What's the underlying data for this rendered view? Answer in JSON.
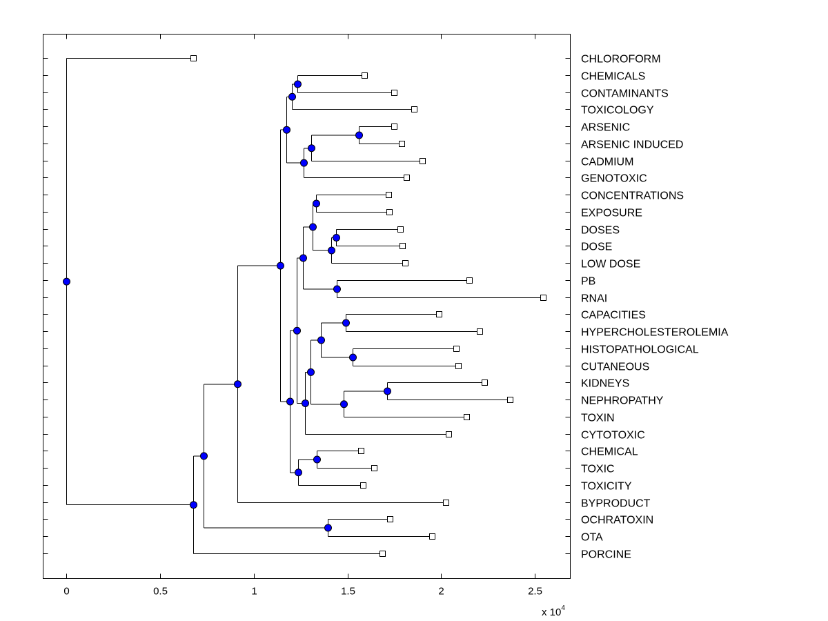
{
  "chart_data": {
    "type": "dendrogram",
    "title": "",
    "xlabel": "",
    "ylabel": "",
    "x_scale_label": "x 10",
    "x_scale_exponent": "4",
    "xlim": [
      -0.125,
      2.69
    ],
    "xticks": [
      0,
      0.5,
      1,
      1.5,
      2,
      2.5
    ],
    "xtick_labels": [
      "0",
      "0.5",
      "1",
      "1.5",
      "2",
      "2.5"
    ],
    "grid": false,
    "colors": {
      "node_fill": "#0000ff",
      "leaf_fill": "#ffffff",
      "line": "#000000"
    },
    "leaves": [
      {
        "id": "CHLOROFORM",
        "label": "CHLOROFORM",
        "x": 0.676
      },
      {
        "id": "CHEMICALS",
        "label": "CHEMICALS",
        "x": 1.592
      },
      {
        "id": "CONTAMINANTS",
        "label": "CONTAMINANTS",
        "x": 1.749
      },
      {
        "id": "TOXICOLOGY",
        "label": "TOXICOLOGY",
        "x": 1.855
      },
      {
        "id": "ARSENIC",
        "label": "ARSENIC",
        "x": 1.749
      },
      {
        "id": "ARSENIC_INDUCED",
        "label": "ARSENIC INDUCED",
        "x": 1.789
      },
      {
        "id": "CADMIUM",
        "label": "CADMIUM",
        "x": 1.899
      },
      {
        "id": "GENOTOXIC",
        "label": "GENOTOXIC",
        "x": 1.815
      },
      {
        "id": "CONCENTRATIONS",
        "label": "CONCENTRATIONS",
        "x": 1.72
      },
      {
        "id": "EXPOSURE",
        "label": "EXPOSURE",
        "x": 1.723
      },
      {
        "id": "DOSES",
        "label": "DOSES",
        "x": 1.782
      },
      {
        "id": "DOSE",
        "label": "DOSE",
        "x": 1.793
      },
      {
        "id": "LOW_DOSE",
        "label": "LOW DOSE",
        "x": 1.808
      },
      {
        "id": "PB",
        "label": "PB",
        "x": 2.152
      },
      {
        "id": "RNAI",
        "label": "RNAI",
        "x": 2.544
      },
      {
        "id": "CAPACITIES",
        "label": "CAPACITIES",
        "x": 1.987
      },
      {
        "id": "HYPERCHOLESTEROLEMIA",
        "label": "HYPERCHOLESTEROLEMIA",
        "x": 2.207
      },
      {
        "id": "HISTOPATHOLOGICAL",
        "label": "HISTOPATHOLOGICAL",
        "x": 2.082
      },
      {
        "id": "CUTANEOUS",
        "label": "CUTANEOUS",
        "x": 2.09
      },
      {
        "id": "KIDNEYS",
        "label": "KIDNEYS",
        "x": 2.233
      },
      {
        "id": "NEPHROPATHY",
        "label": "NEPHROPATHY",
        "x": 2.368
      },
      {
        "id": "TOXIN",
        "label": "TOXIN",
        "x": 2.134
      },
      {
        "id": "CYTOTOXIC",
        "label": "CYTOTOXIC",
        "x": 2.038
      },
      {
        "id": "CHEMICAL",
        "label": "CHEMICAL",
        "x": 1.573
      },
      {
        "id": "TOXIC",
        "label": "TOXIC",
        "x": 1.643
      },
      {
        "id": "TOXICITY",
        "label": "TOXICITY",
        "x": 1.581
      },
      {
        "id": "BYPRODUCT",
        "label": "BYPRODUCT",
        "x": 2.024
      },
      {
        "id": "OCHRATOXIN",
        "label": "OCHRATOXIN",
        "x": 1.727
      },
      {
        "id": "OTA",
        "label": "OTA",
        "x": 1.951
      },
      {
        "id": "PORCINE",
        "label": "PORCINE",
        "x": 1.687
      }
    ],
    "nodes": [
      {
        "id": "root",
        "x": 0.0,
        "children": [
          "CHLOROFORM",
          "n1"
        ]
      },
      {
        "id": "n1",
        "x": 0.676,
        "children": [
          "n2",
          "PORCINE"
        ]
      },
      {
        "id": "n2",
        "x": 0.731,
        "children": [
          "n3",
          "n4"
        ]
      },
      {
        "id": "n3",
        "x": 0.914,
        "children": [
          "n5",
          "BYPRODUCT"
        ]
      },
      {
        "id": "n4",
        "x": 1.394,
        "children": [
          "OCHRATOXIN",
          "OTA"
        ]
      },
      {
        "id": "n5",
        "x": 1.141,
        "children": [
          "n6",
          "n12"
        ]
      },
      {
        "id": "n6",
        "x": 1.174,
        "children": [
          "n7",
          "n9"
        ]
      },
      {
        "id": "n7",
        "x": 1.203,
        "children": [
          "n8",
          "TOXICOLOGY"
        ]
      },
      {
        "id": "n8",
        "x": 1.233,
        "children": [
          "CHEMICALS",
          "CONTAMINANTS"
        ]
      },
      {
        "id": "n9",
        "x": 1.266,
        "children": [
          "n10",
          "GENOTOXIC"
        ]
      },
      {
        "id": "n10",
        "x": 1.306,
        "children": [
          "n11",
          "CADMIUM"
        ]
      },
      {
        "id": "n11",
        "x": 1.559,
        "children": [
          "ARSENIC",
          "ARSENIC_INDUCED"
        ]
      },
      {
        "id": "n12",
        "x": 1.192,
        "children": [
          "n13",
          "n26"
        ]
      },
      {
        "id": "n13",
        "x": 1.229,
        "children": [
          "n14",
          "n19"
        ]
      },
      {
        "id": "n14",
        "x": 1.262,
        "children": [
          "n15",
          "n18"
        ]
      },
      {
        "id": "n15",
        "x": 1.313,
        "children": [
          "n16",
          "n17"
        ]
      },
      {
        "id": "n16",
        "x": 1.332,
        "children": [
          "CONCENTRATIONS",
          "EXPOSURE"
        ]
      },
      {
        "id": "n17",
        "x": 1.412,
        "children": [
          "n17b",
          "LOW_DOSE"
        ]
      },
      {
        "id": "n17b",
        "x": 1.438,
        "children": [
          "DOSES",
          "DOSE"
        ]
      },
      {
        "id": "n18",
        "x": 1.441,
        "children": [
          "PB",
          "RNAI"
        ]
      },
      {
        "id": "n19",
        "x": 1.273,
        "children": [
          "n20",
          "CYTOTOXIC"
        ]
      },
      {
        "id": "n20",
        "x": 1.302,
        "children": [
          "n21",
          "n24"
        ]
      },
      {
        "id": "n21",
        "x": 1.357,
        "children": [
          "n22",
          "n23"
        ]
      },
      {
        "id": "n22",
        "x": 1.489,
        "children": [
          "CAPACITIES",
          "HYPERCHOLESTEROLEMIA"
        ]
      },
      {
        "id": "n23",
        "x": 1.526,
        "children": [
          "HISTOPATHOLOGICAL",
          "CUTANEOUS"
        ]
      },
      {
        "id": "n24",
        "x": 1.478,
        "children": [
          "n25",
          "TOXIN"
        ]
      },
      {
        "id": "n25",
        "x": 1.712,
        "children": [
          "KIDNEYS",
          "NEPHROPATHY"
        ]
      },
      {
        "id": "n26",
        "x": 1.236,
        "children": [
          "n27",
          "TOXICITY"
        ]
      },
      {
        "id": "n27",
        "x": 1.335,
        "children": [
          "CHEMICAL",
          "TOXIC"
        ]
      }
    ]
  }
}
